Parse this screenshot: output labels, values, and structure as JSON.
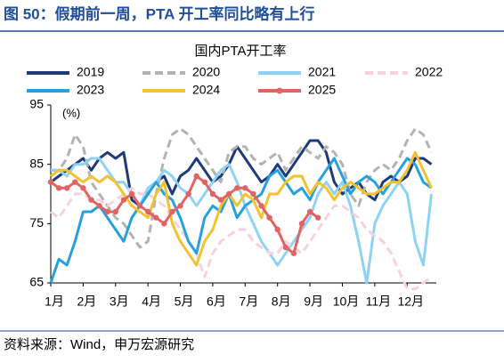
{
  "header": "图 50：假期前一周，PTA 开工率同比略有上行",
  "source": "资料来源：Wind，申万宏源研究",
  "chart_data": {
    "type": "line",
    "title": "国内PTA开工率",
    "y_unit": "(%)",
    "x": [
      1,
      1.25,
      1.5,
      1.75,
      2,
      2.25,
      2.5,
      2.75,
      3,
      3.25,
      3.5,
      3.75,
      4,
      4.25,
      4.5,
      4.75,
      5,
      5.25,
      5.5,
      5.75,
      6,
      6.25,
      6.5,
      6.75,
      7,
      7.25,
      7.5,
      7.75,
      8,
      8.25,
      8.5,
      8.75,
      9,
      9.25,
      9.5,
      9.75,
      10,
      10.25,
      10.5,
      10.75,
      11,
      11.25,
      11.5,
      11.75,
      12,
      12.25,
      12.5,
      12.75
    ],
    "xlim": [
      1,
      12.9
    ],
    "xticks": [
      {
        "value": 1,
        "label": "1月"
      },
      {
        "value": 2,
        "label": "2月"
      },
      {
        "value": 3,
        "label": "3月"
      },
      {
        "value": 4,
        "label": "4月"
      },
      {
        "value": 5,
        "label": "5月"
      },
      {
        "value": 6,
        "label": "6月"
      },
      {
        "value": 7,
        "label": "7月"
      },
      {
        "value": 8,
        "label": "8月"
      },
      {
        "value": 9,
        "label": "9月"
      },
      {
        "value": 10,
        "label": "10月"
      },
      {
        "value": 11,
        "label": "11月"
      },
      {
        "value": 12,
        "label": "12月"
      }
    ],
    "ylim": [
      65,
      95
    ],
    "yticks": [
      65,
      75,
      85,
      95
    ],
    "series": [
      {
        "name": "2019",
        "color": "#1f3a7a",
        "values": [
          82,
          83,
          84,
          85,
          86,
          84,
          86,
          87,
          86,
          87,
          79,
          78,
          80,
          82,
          83,
          80,
          83,
          84,
          86,
          84,
          82,
          83,
          85,
          88,
          86,
          84,
          82,
          83,
          85,
          83,
          85,
          87,
          89,
          89,
          87,
          82,
          80,
          81,
          82,
          80,
          79,
          82,
          83,
          82,
          83,
          86,
          86,
          85
        ]
      },
      {
        "name": "2020",
        "color": "#b3b3b3",
        "dash": true,
        "values": [
          84,
          84,
          86,
          90,
          88,
          82,
          80,
          78,
          76,
          75,
          73,
          71,
          72,
          80,
          86,
          90,
          91,
          90,
          88,
          86,
          84,
          82,
          87,
          88,
          88,
          86,
          85,
          86,
          87,
          84,
          86,
          88,
          87,
          86,
          88,
          87,
          85,
          80,
          78,
          82,
          84,
          85,
          84,
          86,
          89,
          91,
          90,
          87
        ]
      },
      {
        "name": "2021",
        "color": "#8fd3f4",
        "values": [
          84,
          84,
          83,
          85,
          85,
          86,
          86,
          84,
          82,
          82,
          80,
          78,
          81,
          82,
          84,
          83,
          81,
          80,
          78,
          80,
          82,
          84,
          85,
          82,
          78,
          75,
          72,
          70,
          68,
          70,
          72,
          74,
          76,
          80,
          82,
          80,
          82,
          78,
          72,
          65,
          75,
          78,
          80,
          82,
          80,
          72,
          68,
          80
        ]
      },
      {
        "name": "2022",
        "color": "#f6d3dc",
        "dash": true,
        "values": [
          77,
          76,
          78,
          80,
          80,
          79,
          79,
          78,
          79,
          80,
          81,
          80,
          80,
          79,
          78,
          76,
          74,
          72,
          70,
          66,
          70,
          72,
          73,
          74,
          74,
          72,
          71,
          70,
          70,
          72,
          71,
          70,
          72,
          74,
          76,
          78,
          78,
          77,
          76,
          74,
          73,
          72,
          70,
          67,
          64,
          64,
          65,
          66
        ]
      },
      {
        "name": "2023",
        "color": "#27a1dd",
        "values": [
          65,
          69,
          68,
          72,
          77,
          77,
          78,
          76,
          74,
          72,
          76,
          78,
          80,
          82,
          80,
          79,
          76,
          72,
          70,
          76,
          78,
          77,
          80,
          76,
          78,
          79,
          80,
          83,
          84,
          82,
          80,
          81,
          79,
          82,
          84,
          86,
          83,
          80,
          82,
          83,
          82,
          80,
          82,
          84,
          86,
          85,
          82,
          81
        ]
      },
      {
        "name": "2024",
        "color": "#f3c22e",
        "values": [
          83,
          84,
          84,
          83,
          82,
          83,
          82,
          83,
          82,
          80,
          78,
          77,
          76,
          80,
          82,
          75,
          72,
          70,
          68,
          72,
          74,
          78,
          80,
          78,
          80,
          79,
          76,
          80,
          80,
          82,
          83,
          83,
          80,
          82,
          81,
          79,
          81,
          82,
          81,
          80,
          80,
          81,
          82,
          82,
          84,
          87,
          84,
          81
        ]
      },
      {
        "name": "2025",
        "color": "#e06464",
        "marker": true,
        "values": [
          82,
          81,
          81,
          82,
          81,
          79,
          78,
          77,
          77,
          79,
          80,
          78,
          77,
          76,
          75,
          77,
          78,
          80,
          83,
          82,
          80,
          79,
          80,
          81,
          81,
          80,
          78,
          76,
          74,
          71,
          70,
          75,
          77,
          76,
          null,
          null,
          null,
          null,
          null,
          null,
          null,
          null,
          null,
          null,
          null,
          null,
          null,
          null
        ]
      }
    ]
  }
}
